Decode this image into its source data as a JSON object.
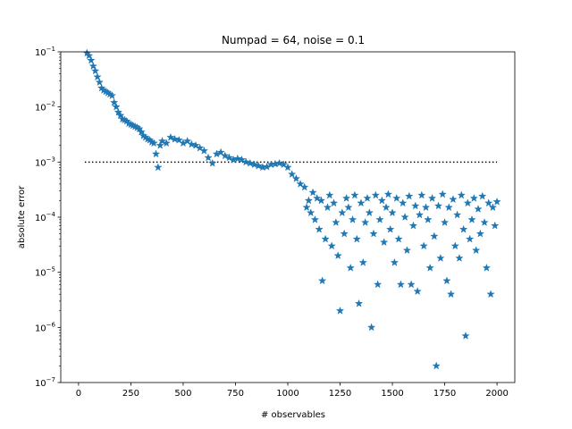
{
  "chart_data": {
    "type": "scatter",
    "title": "Numpad = 64, noise = 0.1",
    "xlabel": "# observables",
    "ylabel": "absolute error",
    "xlim": [
      -85,
      2085
    ],
    "ylim_log10": [
      -7,
      -1
    ],
    "y_scale": "log",
    "grid": false,
    "marker": "star",
    "color": "#1f77b4",
    "xticks": [
      0,
      250,
      500,
      750,
      1000,
      1250,
      1500,
      1750,
      2000
    ],
    "xtick_labels": [
      "0",
      "250",
      "500",
      "750",
      "1000",
      "1250",
      "1500",
      "1750",
      "2000"
    ],
    "yticks_exp": [
      -7,
      -6,
      -5,
      -4,
      -3,
      -2,
      -1
    ],
    "reference_line": {
      "y": 0.001,
      "x_range": [
        30,
        2000
      ],
      "style": "dotted",
      "color": "#000000"
    },
    "series": [
      {
        "points": [
          [
            40,
            0.095
          ],
          [
            50,
            0.085
          ],
          [
            60,
            0.07
          ],
          [
            70,
            0.055
          ],
          [
            80,
            0.045
          ],
          [
            90,
            0.035
          ],
          [
            100,
            0.028
          ],
          [
            110,
            0.022
          ],
          [
            120,
            0.02
          ],
          [
            130,
            0.019
          ],
          [
            140,
            0.018
          ],
          [
            150,
            0.017
          ],
          [
            160,
            0.016
          ],
          [
            170,
            0.012
          ],
          [
            180,
            0.01
          ],
          [
            190,
            0.008
          ],
          [
            200,
            0.007
          ],
          [
            210,
            0.006
          ],
          [
            220,
            0.0058
          ],
          [
            230,
            0.0055
          ],
          [
            240,
            0.005
          ],
          [
            250,
            0.0048
          ],
          [
            260,
            0.0046
          ],
          [
            270,
            0.0044
          ],
          [
            280,
            0.0042
          ],
          [
            290,
            0.004
          ],
          [
            300,
            0.0035
          ],
          [
            310,
            0.003
          ],
          [
            320,
            0.0028
          ],
          [
            330,
            0.0026
          ],
          [
            340,
            0.0025
          ],
          [
            350,
            0.0023
          ],
          [
            360,
            0.0022
          ],
          [
            370,
            0.0014
          ],
          [
            380,
            0.0008
          ],
          [
            390,
            0.002
          ],
          [
            400,
            0.0024
          ],
          [
            420,
            0.0022
          ],
          [
            440,
            0.0028
          ],
          [
            460,
            0.0026
          ],
          [
            480,
            0.0025
          ],
          [
            500,
            0.0022
          ],
          [
            520,
            0.0024
          ],
          [
            540,
            0.0021
          ],
          [
            560,
            0.002
          ],
          [
            580,
            0.0018
          ],
          [
            600,
            0.0016
          ],
          [
            620,
            0.0012
          ],
          [
            640,
            0.00095
          ],
          [
            660,
            0.0014
          ],
          [
            680,
            0.0015
          ],
          [
            700,
            0.0013
          ],
          [
            720,
            0.0012
          ],
          [
            740,
            0.0011
          ],
          [
            760,
            0.00115
          ],
          [
            780,
            0.0011
          ],
          [
            800,
            0.001
          ],
          [
            820,
            0.00095
          ],
          [
            840,
            0.0009
          ],
          [
            860,
            0.00085
          ],
          [
            880,
            0.0008
          ],
          [
            900,
            0.00082
          ],
          [
            920,
            0.0009
          ],
          [
            940,
            0.00092
          ],
          [
            960,
            0.00095
          ],
          [
            980,
            0.0009
          ],
          [
            1000,
            0.0008
          ],
          [
            1020,
            0.0006
          ],
          [
            1040,
            0.0005
          ],
          [
            1060,
            0.0004
          ],
          [
            1080,
            0.00035
          ],
          [
            1090,
            0.00015
          ],
          [
            1100,
            0.0002
          ],
          [
            1110,
            0.00012
          ],
          [
            1120,
            0.00028
          ],
          [
            1130,
            9e-05
          ],
          [
            1140,
            0.00022
          ],
          [
            1150,
            6e-05
          ],
          [
            1160,
            0.0002
          ],
          [
            1165,
            7e-06
          ],
          [
            1180,
            4e-05
          ],
          [
            1190,
            0.00015
          ],
          [
            1200,
            0.00025
          ],
          [
            1210,
            3e-05
          ],
          [
            1220,
            0.00018
          ],
          [
            1230,
            8e-05
          ],
          [
            1240,
            2e-05
          ],
          [
            1250,
            2e-06
          ],
          [
            1260,
            0.00012
          ],
          [
            1270,
            5e-05
          ],
          [
            1280,
            0.00022
          ],
          [
            1290,
            0.00015
          ],
          [
            1300,
            1.2e-05
          ],
          [
            1310,
            9e-05
          ],
          [
            1320,
            0.00025
          ],
          [
            1330,
            4e-05
          ],
          [
            1340,
            2.7e-06
          ],
          [
            1350,
            0.00018
          ],
          [
            1360,
            1.5e-05
          ],
          [
            1370,
            8e-05
          ],
          [
            1380,
            0.00022
          ],
          [
            1390,
            0.00012
          ],
          [
            1400,
            1e-06
          ],
          [
            1410,
            5e-05
          ],
          [
            1420,
            0.00025
          ],
          [
            1430,
            6e-06
          ],
          [
            1440,
            9e-05
          ],
          [
            1450,
            0.0002
          ],
          [
            1460,
            3.5e-05
          ],
          [
            1470,
            0.00015
          ],
          [
            1480,
            0.00026
          ],
          [
            1490,
            6e-05
          ],
          [
            1500,
            0.00012
          ],
          [
            1510,
            1.5e-05
          ],
          [
            1520,
            0.00022
          ],
          [
            1530,
            4e-05
          ],
          [
            1540,
            6e-06
          ],
          [
            1550,
            0.00018
          ],
          [
            1560,
            0.0001
          ],
          [
            1570,
            2.5e-05
          ],
          [
            1580,
            0.00024
          ],
          [
            1590,
            6e-06
          ],
          [
            1600,
            7e-05
          ],
          [
            1610,
            0.00016
          ],
          [
            1620,
            4.5e-06
          ],
          [
            1630,
            0.00011
          ],
          [
            1640,
            0.00025
          ],
          [
            1650,
            3e-05
          ],
          [
            1660,
            0.00015
          ],
          [
            1670,
            9e-05
          ],
          [
            1680,
            1.2e-05
          ],
          [
            1690,
            0.00022
          ],
          [
            1700,
            4.5e-05
          ],
          [
            1710,
            2e-07
          ],
          [
            1720,
            0.00016
          ],
          [
            1730,
            1.8e-05
          ],
          [
            1740,
            0.00026
          ],
          [
            1750,
            8e-05
          ],
          [
            1760,
            7e-06
          ],
          [
            1770,
            0.00015
          ],
          [
            1780,
            4e-06
          ],
          [
            1790,
            0.00021
          ],
          [
            1800,
            3e-05
          ],
          [
            1810,
            0.00011
          ],
          [
            1820,
            1.8e-05
          ],
          [
            1830,
            0.00025
          ],
          [
            1840,
            6e-05
          ],
          [
            1850,
            7e-07
          ],
          [
            1860,
            0.00018
          ],
          [
            1870,
            4e-05
          ],
          [
            1880,
            9e-05
          ],
          [
            1890,
            0.00022
          ],
          [
            1900,
            2.5e-05
          ],
          [
            1910,
            0.00014
          ],
          [
            1920,
            5e-05
          ],
          [
            1930,
            0.00024
          ],
          [
            1940,
            8e-05
          ],
          [
            1950,
            1.2e-05
          ],
          [
            1960,
            0.00018
          ],
          [
            1970,
            4e-06
          ],
          [
            1980,
            0.00015
          ],
          [
            1990,
            7e-05
          ],
          [
            2000,
            0.00019
          ]
        ]
      }
    ]
  }
}
